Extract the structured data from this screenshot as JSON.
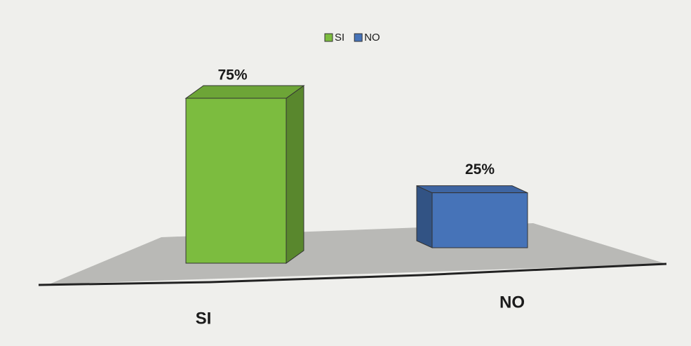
{
  "chart_data": {
    "type": "bar",
    "categories": [
      "SI",
      "NO"
    ],
    "series": [
      {
        "name": "SI",
        "color": "#7cbc3f",
        "values": [
          75,
          null
        ],
        "value_labels": [
          "75%",
          null
        ]
      },
      {
        "name": "NO",
        "color": "#4673b8",
        "values": [
          null,
          25
        ],
        "value_labels": [
          null,
          "25%"
        ]
      }
    ]
  }
}
